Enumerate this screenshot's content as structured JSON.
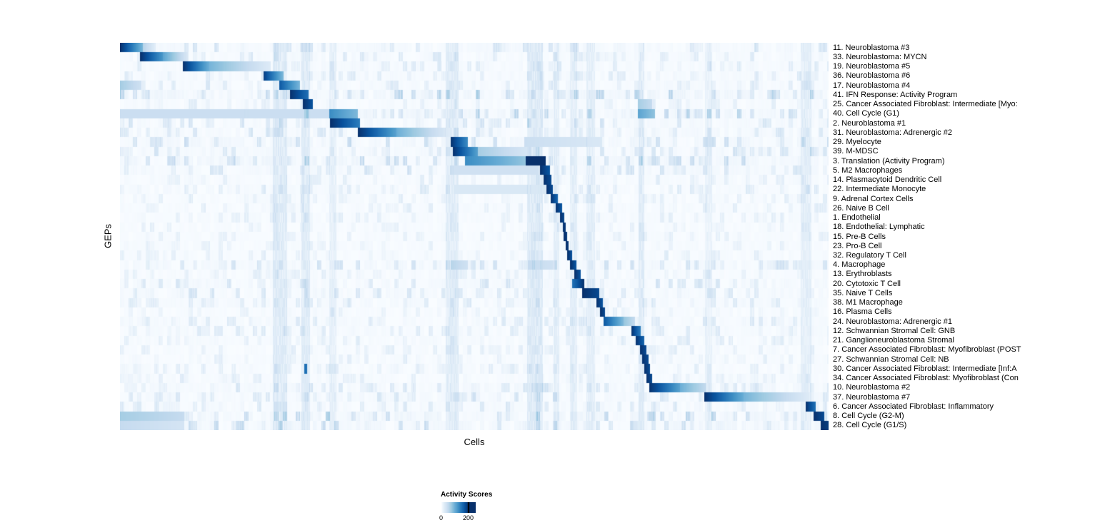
{
  "chart_data": {
    "type": "heatmap",
    "title": "",
    "xlabel": "Cells",
    "ylabel": "GEPs",
    "value_range": [
      0,
      200
    ],
    "base_value": 3,
    "grid": false,
    "legend": {
      "title": "Activity Scores",
      "ticks": [
        "0",
        "200"
      ],
      "gradient_max": 250,
      "position": "bottom"
    },
    "colormap_stops": [
      {
        "t": 0.0,
        "color": "#ffffff"
      },
      {
        "t": 0.02,
        "color": "#f7fbff"
      },
      {
        "t": 0.125,
        "color": "#deebf7"
      },
      {
        "t": 0.25,
        "color": "#c6dbef"
      },
      {
        "t": 0.375,
        "color": "#9ecae1"
      },
      {
        "t": 0.5,
        "color": "#6baed6"
      },
      {
        "t": 0.625,
        "color": "#4292c6"
      },
      {
        "t": 0.75,
        "color": "#2171b5"
      },
      {
        "t": 0.875,
        "color": "#08519c"
      },
      {
        "t": 1.0,
        "color": "#08306b"
      }
    ],
    "background_streaks": [
      {
        "pos": 0.225,
        "w": 0.02,
        "v": 18
      },
      {
        "pos": 0.262,
        "w": 0.012,
        "v": 18
      },
      {
        "pos": 0.3,
        "w": 0.01,
        "v": 12
      },
      {
        "pos": 0.468,
        "w": 0.018,
        "v": 16
      },
      {
        "pos": 0.585,
        "w": 0.022,
        "v": 20
      },
      {
        "pos": 0.615,
        "w": 0.008,
        "v": 14
      },
      {
        "pos": 0.64,
        "w": 0.01,
        "v": 14
      },
      {
        "pos": 0.664,
        "w": 0.012,
        "v": 14
      },
      {
        "pos": 0.735,
        "w": 0.008,
        "v": 18
      },
      {
        "pos": 0.83,
        "w": 0.01,
        "v": 10
      },
      {
        "pos": 0.968,
        "w": 0.015,
        "v": 14
      }
    ],
    "rows": [
      {
        "label": "11. Neuroblastoma #3",
        "noise": 0.5,
        "segments": [
          {
            "s": 0.0,
            "e": 0.032,
            "v0": 200,
            "v1": 90
          },
          {
            "s": 0.032,
            "e": 0.05,
            "v0": 60,
            "v1": 20
          }
        ]
      },
      {
        "label": "33. Neuroblastoma: MYCN",
        "noise": 0.4,
        "segments": [
          {
            "s": 0.028,
            "e": 0.06,
            "v0": 200,
            "v1": 120
          },
          {
            "s": 0.06,
            "e": 0.095,
            "v0": 110,
            "v1": 30
          }
        ]
      },
      {
        "label": "19. Neuroblastoma #5",
        "noise": 0.4,
        "segments": [
          {
            "s": 0.088,
            "e": 0.125,
            "v0": 200,
            "v1": 100
          },
          {
            "s": 0.125,
            "e": 0.212,
            "v0": 95,
            "v1": 25
          }
        ]
      },
      {
        "label": "36. Neuroblastoma #6",
        "noise": 0.4,
        "segments": [
          {
            "s": 0.202,
            "e": 0.23,
            "v0": 190,
            "v1": 90
          }
        ]
      },
      {
        "label": "17. Neuroblastoma #4",
        "noise": 0.4,
        "segments": [
          {
            "s": 0.0,
            "e": 0.03,
            "v0": 70,
            "v1": 40
          },
          {
            "s": 0.224,
            "e": 0.254,
            "v0": 170,
            "v1": 90
          }
        ]
      },
      {
        "label": "41. IFN Response: Activity Program",
        "noise": 0.9,
        "segments": [
          {
            "s": 0.239,
            "e": 0.266,
            "v0": 200,
            "v1": 150
          }
        ]
      },
      {
        "label": "25. Cancer Associated Fibroblast: Intermediate [Myo:",
        "noise": 0.3,
        "segments": [
          {
            "s": 0.258,
            "e": 0.272,
            "v0": 200,
            "v1": 170
          },
          {
            "s": 0.73,
            "e": 0.75,
            "v0": 70,
            "v1": 50
          }
        ]
      },
      {
        "label": "40. Cell Cycle (G1)",
        "noise": 0.8,
        "segments": [
          {
            "s": 0.0,
            "e": 0.295,
            "v0": 45,
            "v1": 45
          },
          {
            "s": 0.295,
            "e": 0.335,
            "v0": 130,
            "v1": 90
          },
          {
            "s": 0.73,
            "e": 0.755,
            "v0": 110,
            "v1": 80
          }
        ]
      },
      {
        "label": "2. Neuroblastoma #1",
        "noise": 0.5,
        "segments": [
          {
            "s": 0.296,
            "e": 0.338,
            "v0": 200,
            "v1": 140
          }
        ]
      },
      {
        "label": "31. Neuroblastoma: Adrenergic #2",
        "noise": 0.5,
        "segments": [
          {
            "s": 0.335,
            "e": 0.39,
            "v0": 200,
            "v1": 110
          },
          {
            "s": 0.39,
            "e": 0.468,
            "v0": 100,
            "v1": 20
          }
        ]
      },
      {
        "label": "29. Myelocyte",
        "noise": 0.7,
        "segments": [
          {
            "s": 0.466,
            "e": 0.49,
            "v0": 200,
            "v1": 130
          },
          {
            "s": 0.57,
            "e": 0.68,
            "v0": 45,
            "v1": 30
          }
        ]
      },
      {
        "label": "39. M-MDSC",
        "noise": 0.5,
        "segments": [
          {
            "s": 0.469,
            "e": 0.505,
            "v0": 200,
            "v1": 110
          },
          {
            "s": 0.505,
            "e": 0.58,
            "v0": 70,
            "v1": 30
          }
        ]
      },
      {
        "label": "3. Translation (Activity Program)",
        "noise": 0.8,
        "segments": [
          {
            "s": 0.486,
            "e": 0.572,
            "v0": 130,
            "v1": 80
          },
          {
            "s": 0.572,
            "e": 0.6,
            "v0": 200,
            "v1": 200
          }
        ]
      },
      {
        "label": "5. M2 Macrophages",
        "noise": 0.5,
        "segments": [
          {
            "s": 0.47,
            "e": 0.59,
            "v0": 40,
            "v1": 40
          },
          {
            "s": 0.592,
            "e": 0.606,
            "v0": 200,
            "v1": 170
          }
        ]
      },
      {
        "label": "14. Plasmacytoid Dendritic Cell",
        "noise": 0.3,
        "segments": [
          {
            "s": 0.597,
            "e": 0.608,
            "v0": 200,
            "v1": 180
          }
        ]
      },
      {
        "label": "22. Intermediate Monocyte",
        "noise": 0.4,
        "segments": [
          {
            "s": 0.47,
            "e": 0.6,
            "v0": 30,
            "v1": 30
          },
          {
            "s": 0.601,
            "e": 0.61,
            "v0": 200,
            "v1": 180
          }
        ]
      },
      {
        "label": "9. Adrenal Cortex Cells",
        "noise": 0.3,
        "segments": [
          {
            "s": 0.607,
            "e": 0.617,
            "v0": 200,
            "v1": 160
          }
        ]
      },
      {
        "label": "26. Naive B Cell",
        "noise": 0.3,
        "segments": [
          {
            "s": 0.614,
            "e": 0.623,
            "v0": 200,
            "v1": 170
          }
        ]
      },
      {
        "label": "1. Endothelial",
        "noise": 0.3,
        "segments": [
          {
            "s": 0.62,
            "e": 0.627,
            "v0": 200,
            "v1": 180
          }
        ]
      },
      {
        "label": "18. Endothelial: Lymphatic",
        "noise": 0.25,
        "segments": [
          {
            "s": 0.624,
            "e": 0.629,
            "v0": 200,
            "v1": 190
          }
        ]
      },
      {
        "label": "15. Pre-B Cells",
        "noise": 0.25,
        "segments": [
          {
            "s": 0.626,
            "e": 0.631,
            "v0": 200,
            "v1": 190
          }
        ]
      },
      {
        "label": "23. Pro-B Cell",
        "noise": 0.25,
        "segments": [
          {
            "s": 0.629,
            "e": 0.633,
            "v0": 200,
            "v1": 190
          }
        ]
      },
      {
        "label": "32. Regulatory T Cell",
        "noise": 0.3,
        "segments": [
          {
            "s": 0.631,
            "e": 0.638,
            "v0": 200,
            "v1": 170
          }
        ]
      },
      {
        "label": "4. Macrophage",
        "noise": 0.6,
        "segments": [
          {
            "s": 0.466,
            "e": 0.49,
            "v0": 60,
            "v1": 40
          },
          {
            "s": 0.575,
            "e": 0.61,
            "v0": 50,
            "v1": 40
          },
          {
            "s": 0.635,
            "e": 0.644,
            "v0": 200,
            "v1": 170
          }
        ]
      },
      {
        "label": "13. Erythroblasts",
        "noise": 0.3,
        "segments": [
          {
            "s": 0.641,
            "e": 0.65,
            "v0": 200,
            "v1": 170
          }
        ]
      },
      {
        "label": "20. Cytotoxic T Cell",
        "noise": 0.5,
        "segments": [
          {
            "s": 0.638,
            "e": 0.655,
            "v0": 150,
            "v1": 200
          }
        ]
      },
      {
        "label": "35. Naive T Cells",
        "noise": 0.5,
        "segments": [
          {
            "s": 0.652,
            "e": 0.676,
            "v0": 200,
            "v1": 180
          }
        ]
      },
      {
        "label": "38. M1 Macrophage",
        "noise": 0.4,
        "segments": [
          {
            "s": 0.672,
            "e": 0.681,
            "v0": 200,
            "v1": 170
          }
        ]
      },
      {
        "label": "16. Plasma Cells",
        "noise": 0.25,
        "segments": [
          {
            "s": 0.677,
            "e": 0.684,
            "v0": 200,
            "v1": 180
          }
        ]
      },
      {
        "label": "24. Neuroblastoma: Adrenergic #1",
        "noise": 0.4,
        "segments": [
          {
            "s": 0.682,
            "e": 0.71,
            "v0": 170,
            "v1": 90
          },
          {
            "s": 0.71,
            "e": 0.726,
            "v0": 80,
            "v1": 50
          }
        ]
      },
      {
        "label": "12. Schwannian Stromal Cell: GNB",
        "noise": 0.35,
        "segments": [
          {
            "s": 0.721,
            "e": 0.734,
            "v0": 200,
            "v1": 140
          }
        ]
      },
      {
        "label": "21. Ganglioneuroblastoma Stromal",
        "noise": 0.35,
        "segments": [
          {
            "s": 0.727,
            "e": 0.739,
            "v0": 200,
            "v1": 160
          }
        ]
      },
      {
        "label": "7. Cancer Associated Fibroblast: Myofibroblast (POST",
        "noise": 0.3,
        "segments": [
          {
            "s": 0.733,
            "e": 0.742,
            "v0": 200,
            "v1": 180
          }
        ]
      },
      {
        "label": "27. Schwannian Stromal Cell: NB",
        "noise": 0.3,
        "segments": [
          {
            "s": 0.736,
            "e": 0.745,
            "v0": 200,
            "v1": 180
          }
        ]
      },
      {
        "label": "30. Cancer Associated Fibroblast: Intermediate [Inf:A",
        "noise": 0.3,
        "segments": [
          {
            "s": 0.26,
            "e": 0.264,
            "v0": 150,
            "v1": 150
          },
          {
            "s": 0.739,
            "e": 0.747,
            "v0": 200,
            "v1": 180
          }
        ]
      },
      {
        "label": "34. Cancer Associated Fibroblast: Myofibroblast (Con",
        "noise": 0.3,
        "segments": [
          {
            "s": 0.742,
            "e": 0.75,
            "v0": 200,
            "v1": 180
          }
        ]
      },
      {
        "label": "10. Neuroblastoma #2",
        "noise": 0.5,
        "segments": [
          {
            "s": 0.746,
            "e": 0.79,
            "v0": 200,
            "v1": 110
          },
          {
            "s": 0.79,
            "e": 0.827,
            "v0": 100,
            "v1": 50
          }
        ]
      },
      {
        "label": "37. Neuroblastoma #7",
        "noise": 0.5,
        "segments": [
          {
            "s": 0.824,
            "e": 0.88,
            "v0": 200,
            "v1": 100
          },
          {
            "s": 0.88,
            "e": 0.972,
            "v0": 95,
            "v1": 25
          }
        ]
      },
      {
        "label": "6. Cancer Associated Fibroblast: Inflammatory",
        "noise": 0.4,
        "segments": [
          {
            "s": 0.967,
            "e": 0.981,
            "v0": 200,
            "v1": 150
          }
        ]
      },
      {
        "label": "8. Cell Cycle (G2-M)",
        "noise": 0.9,
        "segments": [
          {
            "s": 0.0,
            "e": 0.09,
            "v0": 70,
            "v1": 50
          },
          {
            "s": 0.978,
            "e": 0.993,
            "v0": 200,
            "v1": 180
          }
        ]
      },
      {
        "label": "28. Cell Cycle (G1/S)",
        "noise": 0.7,
        "segments": [
          {
            "s": 0.0,
            "e": 0.09,
            "v0": 50,
            "v1": 35
          },
          {
            "s": 0.988,
            "e": 1.0,
            "v0": 200,
            "v1": 190
          }
        ]
      }
    ]
  }
}
